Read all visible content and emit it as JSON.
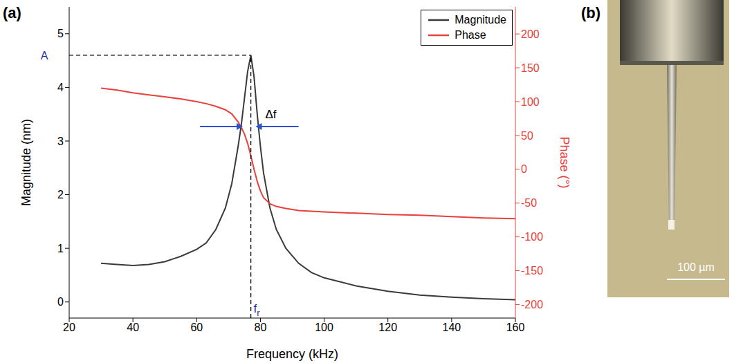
{
  "chart_data": {
    "type": "line",
    "panel_label": "(a)",
    "x_label": "Frequency (kHz)",
    "y_label": "Magnitude (nm)",
    "y2_label": "Phase (°)",
    "x": [
      30,
      35,
      40,
      45,
      50,
      55,
      60,
      63,
      66,
      69,
      71,
      73,
      74,
      75,
      76,
      77,
      78,
      79,
      80,
      81,
      83,
      85,
      88,
      92,
      96,
      100,
      110,
      120,
      130,
      140,
      150,
      160
    ],
    "series": [
      {
        "name": "Magnitude",
        "color": "#3a3a3a",
        "values": [
          0.72,
          0.7,
          0.68,
          0.7,
          0.75,
          0.85,
          0.98,
          1.1,
          1.35,
          1.75,
          2.2,
          2.9,
          3.3,
          3.8,
          4.3,
          4.6,
          4.2,
          3.5,
          2.9,
          2.4,
          1.75,
          1.35,
          1.0,
          0.72,
          0.55,
          0.45,
          0.3,
          0.2,
          0.13,
          0.09,
          0.06,
          0.04
        ]
      },
      {
        "name": "Phase",
        "color": "#e8403a",
        "axis": "y2",
        "values": [
          120,
          117,
          113,
          110,
          107,
          104,
          100,
          97,
          93,
          88,
          82,
          70,
          62,
          52,
          38,
          20,
          0,
          -18,
          -32,
          -42,
          -51,
          -55,
          -58,
          -61,
          -62,
          -63,
          -65,
          -67,
          -68,
          -70,
          -72,
          -73
        ]
      }
    ],
    "xlim": [
      20,
      160
    ],
    "xticks": [
      20,
      40,
      60,
      80,
      100,
      120,
      140,
      160
    ],
    "ylim": [
      -0.3,
      5.5
    ],
    "yticks": [
      0,
      1,
      2,
      3,
      4,
      5
    ],
    "y2lim": [
      -220,
      240
    ],
    "y2ticks": [
      -200,
      -150,
      -100,
      -50,
      0,
      50,
      100,
      150,
      200
    ],
    "legend": "upper right",
    "grid": false,
    "annotations": [
      {
        "text": "A",
        "y": 4.6
      },
      {
        "text": "fr",
        "x": 77
      },
      {
        "text": "Δf",
        "x": [
          74.5,
          78.5
        ],
        "y": 3.27
      }
    ]
  },
  "panel_b": {
    "label": "(b)",
    "scale_bar": "100 µm"
  }
}
